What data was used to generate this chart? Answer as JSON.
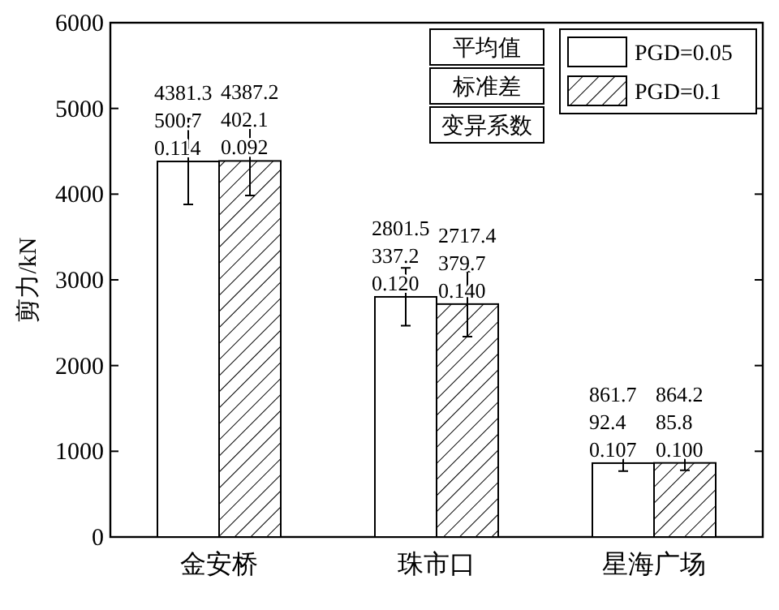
{
  "chart_data": {
    "type": "bar",
    "ylabel": "剪力/kN",
    "categories": [
      "金安桥",
      "珠市口",
      "星海广场"
    ],
    "series": [
      {
        "name": "PGD=0.05",
        "color": "#ffffff",
        "values": [
          4381.3,
          2801.5,
          861.7
        ],
        "errors": [
          500.7,
          337.2,
          92.4
        ],
        "value_labels": [
          "4381.3\n500.7\n0.114",
          "2801.5\n337.2\n0.120",
          "861.7\n92.4\n0.107"
        ]
      },
      {
        "name": "PGD=0.1",
        "color": "#000000",
        "values": [
          4387.2,
          2717.4,
          864.2
        ],
        "errors": [
          402.1,
          379.7,
          85.8
        ],
        "value_labels": [
          "4387.2\n402.1\n0.092",
          "2717.4\n379.7\n0.140",
          "864.2\n85.8\n0.100"
        ]
      }
    ],
    "annotations": [
      "平均值",
      "标准差",
      "变异系数"
    ],
    "ylim": [
      0,
      6000
    ],
    "yticks": [
      0,
      1000,
      2000,
      3000,
      4000,
      5000,
      6000
    ],
    "grid": false,
    "legend": "top right"
  }
}
